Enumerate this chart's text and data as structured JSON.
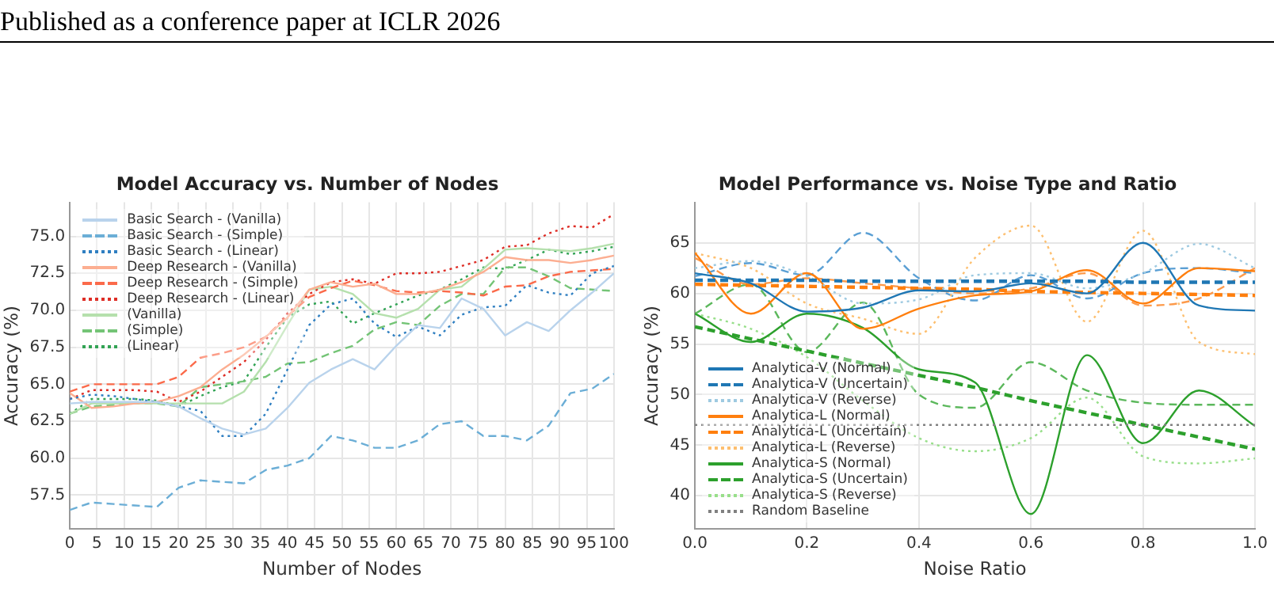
{
  "chart_data": [
    {
      "type": "line",
      "title": "Model Accuracy vs. Number of Nodes",
      "xlabel": "Number of Nodes",
      "ylabel": "Accuracy (%)",
      "annotations": [
        "Published as a conference paper at ICLR 2026"
      ],
      "x": [
        0,
        4,
        8,
        12,
        16,
        20,
        24,
        28,
        32,
        36,
        40,
        44,
        48,
        52,
        56,
        60,
        64,
        68,
        72,
        76,
        80,
        84,
        88,
        92,
        96,
        100
      ],
      "xlim": [
        0,
        100
      ],
      "xticks": [
        0,
        5,
        10,
        15,
        20,
        25,
        30,
        35,
        40,
        45,
        50,
        55,
        60,
        65,
        70,
        75,
        80,
        85,
        90,
        95,
        100
      ],
      "ylim": [
        55.2,
        77.3
      ],
      "yticks": [
        {
          "value": 57.5,
          "label": "57.5"
        },
        {
          "value": 60,
          "label": "60.0"
        },
        {
          "value": 62.5,
          "label": "62.5"
        },
        {
          "value": 65,
          "label": "65.0"
        },
        {
          "value": 67.5,
          "label": "67.5"
        },
        {
          "value": 70,
          "label": "70.0"
        },
        {
          "value": 72.5,
          "label": "72.5"
        },
        {
          "value": 75,
          "label": "75.0"
        }
      ],
      "grid": true,
      "legend": "top left",
      "marker": "none",
      "series": [
        {
          "name": "Basic Search - (Vanilla)",
          "color": "#b9d3ec",
          "line_style": "solid",
          "values": [
            63.7,
            63.8,
            63.8,
            63.8,
            63.8,
            63.5,
            62.7,
            62.0,
            61.6,
            62.0,
            63.4,
            65.1,
            66.0,
            66.7,
            66.0,
            67.6,
            69.0,
            68.8,
            70.8,
            70.1,
            68.3,
            69.2,
            68.6,
            70.0,
            71.2,
            72.5
          ]
        },
        {
          "name": "Basic Search - (Simple)",
          "color": "#6baed6",
          "line_style": "dashed",
          "values": [
            56.5,
            57.0,
            56.9,
            56.8,
            56.7,
            58.0,
            58.5,
            58.4,
            58.3,
            59.2,
            59.5,
            60.0,
            61.5,
            61.2,
            60.7,
            60.7,
            61.2,
            62.3,
            62.5,
            61.5,
            61.5,
            61.2,
            62.2,
            64.4,
            64.7,
            65.7
          ]
        },
        {
          "name": "Basic Search - (Linear)",
          "color": "#2f7fc1",
          "line_style": "dotted",
          "values": [
            64.0,
            64.3,
            64.2,
            64.0,
            63.8,
            63.5,
            63.2,
            61.5,
            61.5,
            63.0,
            66.0,
            69.0,
            70.4,
            70.8,
            69.1,
            68.2,
            68.9,
            68.3,
            69.7,
            70.2,
            70.3,
            71.7,
            71.2,
            71.0,
            72.5,
            73.0
          ]
        },
        {
          "name": "Deep Research - (Vanilla)",
          "color": "#fcae91",
          "line_style": "solid",
          "values": [
            64.4,
            63.4,
            63.5,
            63.7,
            63.8,
            64.2,
            64.8,
            66.0,
            67.0,
            68.2,
            69.5,
            71.4,
            71.9,
            71.6,
            71.8,
            71.1,
            71.1,
            71.4,
            71.9,
            72.6,
            73.6,
            73.4,
            73.4,
            73.2,
            73.4,
            73.7
          ]
        },
        {
          "name": "Deep Research - (Simple)",
          "color": "#fb6a4a",
          "line_style": "dashed",
          "values": [
            64.5,
            65.0,
            65.0,
            65.0,
            65.0,
            65.5,
            66.8,
            67.1,
            67.5,
            68.2,
            69.6,
            70.9,
            71.5,
            72.0,
            71.7,
            71.3,
            71.2,
            71.3,
            71.2,
            71.0,
            71.6,
            71.7,
            72.3,
            72.6,
            72.7,
            72.8
          ]
        },
        {
          "name": "Deep Research - (Linear)",
          "color": "#de2d26",
          "line_style": "dotted",
          "values": [
            64.0,
            64.6,
            64.6,
            64.6,
            64.5,
            63.8,
            64.5,
            65.5,
            66.5,
            68.0,
            69.8,
            71.1,
            71.9,
            72.1,
            71.8,
            72.5,
            72.5,
            72.6,
            73.0,
            73.4,
            74.3,
            74.4,
            75.2,
            75.7,
            75.6,
            76.5
          ]
        },
        {
          "name": "(Vanilla)",
          "color": "#b5e0ad",
          "line_style": "solid",
          "values": [
            63.0,
            63.7,
            63.7,
            63.7,
            63.7,
            63.7,
            63.7,
            63.7,
            64.5,
            66.5,
            69.0,
            71.4,
            71.6,
            71.1,
            69.8,
            69.5,
            70.1,
            71.4,
            71.6,
            72.8,
            74.1,
            74.2,
            74.1,
            74.0,
            74.2,
            74.5
          ]
        },
        {
          "name": "(Simple)",
          "color": "#74c476",
          "line_style": "dashed",
          "values": [
            63.0,
            63.5,
            63.6,
            63.7,
            63.7,
            63.5,
            64.8,
            65.0,
            65.2,
            65.5,
            66.4,
            66.5,
            67.1,
            67.6,
            68.7,
            69.2,
            69.0,
            70.3,
            71.1,
            71.1,
            72.9,
            72.9,
            72.3,
            71.5,
            71.4,
            71.3
          ]
        },
        {
          "name": "(Linear)",
          "color": "#31a354",
          "line_style": "dotted",
          "values": [
            63.0,
            64.0,
            64.0,
            64.0,
            63.9,
            63.5,
            64.2,
            64.8,
            65.2,
            67.5,
            69.5,
            70.4,
            70.6,
            69.1,
            69.8,
            70.4,
            71.0,
            71.4,
            72.1,
            72.9,
            72.8,
            73.4,
            74.1,
            73.8,
            74.0,
            74.3
          ]
        }
      ]
    },
    {
      "type": "line",
      "title": "Model Performance vs. Noise Type and Ratio",
      "xlabel": "Noise Ratio",
      "ylabel": "Accuracy (%)",
      "x": [
        0,
        0.1,
        0.2,
        0.3,
        0.4,
        0.5,
        0.6,
        0.7,
        0.8,
        0.9,
        1.0
      ],
      "xlim": [
        0,
        1
      ],
      "xticks": [
        {
          "value": 0,
          "label": "0.0"
        },
        {
          "value": 0.2,
          "label": "0.2"
        },
        {
          "value": 0.4,
          "label": "0.4"
        },
        {
          "value": 0.6,
          "label": "0.6"
        },
        {
          "value": 0.8,
          "label": "0.8"
        },
        {
          "value": 1,
          "label": "1.0"
        }
      ],
      "ylim": [
        36.7,
        69
      ],
      "yticks": [
        40,
        45,
        50,
        55,
        60,
        65
      ],
      "grid": true,
      "legend": "bottom left",
      "marker": "none",
      "ref_lines": [
        {
          "axis": "y",
          "value": 47,
          "label": "Random Baseline",
          "color": "#808080",
          "line_style": "dotted"
        }
      ],
      "series": [
        {
          "name": "Analytica-V (Normal)",
          "color": "#1f77b4",
          "line_style": "solid",
          "values": [
            62.0,
            61.0,
            58.2,
            58.6,
            60.3,
            60.2,
            61.0,
            60.0,
            65.0,
            58.8,
            58.3
          ]
        },
        {
          "name": "Analytica-V (Uncertain)",
          "color": "#1f77b4",
          "line_style": "dashed",
          "values": [
            61.3,
            61.3,
            61.3,
            61.2,
            61.2,
            61.2,
            61.2,
            61.2,
            61.1,
            61.1,
            61.1
          ]
        },
        {
          "name": "Analytica-V (Reverse)",
          "color": "#9ecae1",
          "line_style": "dotted",
          "values": [
            62.5,
            63.2,
            61.7,
            59.0,
            59.4,
            61.8,
            62.0,
            60.5,
            62.0,
            64.9,
            62.5
          ]
        },
        {
          "name": "Analytica-L (Normal)",
          "color": "#ff7f0e",
          "line_style": "solid",
          "values": [
            64.0,
            58.0,
            62.0,
            56.5,
            58.5,
            59.8,
            60.2,
            62.3,
            59.0,
            62.5,
            62.2
          ]
        },
        {
          "name": "Analytica-L (Uncertain)",
          "color": "#ff7f0e",
          "line_style": "dashed",
          "values": [
            60.9,
            60.8,
            60.7,
            60.6,
            60.5,
            60.4,
            60.2,
            60.1,
            60.0,
            59.9,
            59.8
          ]
        },
        {
          "name": "Analytica-L (Reverse)",
          "color": "#fdbf6f",
          "line_style": "dotted",
          "values": [
            64.0,
            62.5,
            59.0,
            57.5,
            56.0,
            63.5,
            66.7,
            57.2,
            66.2,
            55.2,
            54.0
          ]
        },
        {
          "name": "Analytica-S (Normal)",
          "color": "#2ca02c",
          "line_style": "solid",
          "values": [
            58.0,
            55.2,
            58.0,
            56.6,
            52.5,
            51.2,
            38.2,
            53.9,
            45.2,
            50.4,
            46.9
          ]
        },
        {
          "name": "Analytica-S (Uncertain)",
          "color": "#2ca02c",
          "line_style": "dashed",
          "values": [
            56.7,
            55.5,
            54.3,
            53.1,
            51.9,
            50.7,
            49.4,
            48.2,
            47.0,
            45.8,
            44.6
          ]
        },
        {
          "name": "Analytica-S (Reverse)",
          "color": "#98df8a",
          "line_style": "dotted",
          "values": [
            58.0,
            56.5,
            53.7,
            49.4,
            45.7,
            44.4,
            45.7,
            49.7,
            43.9,
            43.2,
            43.7
          ]
        },
        {
          "color": "#5a9fd4",
          "line_style": "dashed",
          "values": [
            61.7,
            63.0,
            61.8,
            66.0,
            61.5,
            59.3,
            61.8,
            59.5,
            62.0,
            62.5,
            62.0
          ]
        },
        {
          "color": "#fd9a4a",
          "line_style": "dashed",
          "values": [
            63.5,
            60.9,
            61.5,
            61.0,
            60.5,
            60.0,
            60.5,
            62.0,
            58.8,
            59.5,
            62.5
          ]
        },
        {
          "color": "#5cb85c",
          "line_style": "dashed",
          "values": [
            58.0,
            60.9,
            54.2,
            59.1,
            50.0,
            48.7,
            53.2,
            50.4,
            49.2,
            49.0,
            49.0
          ]
        }
      ]
    }
  ]
}
